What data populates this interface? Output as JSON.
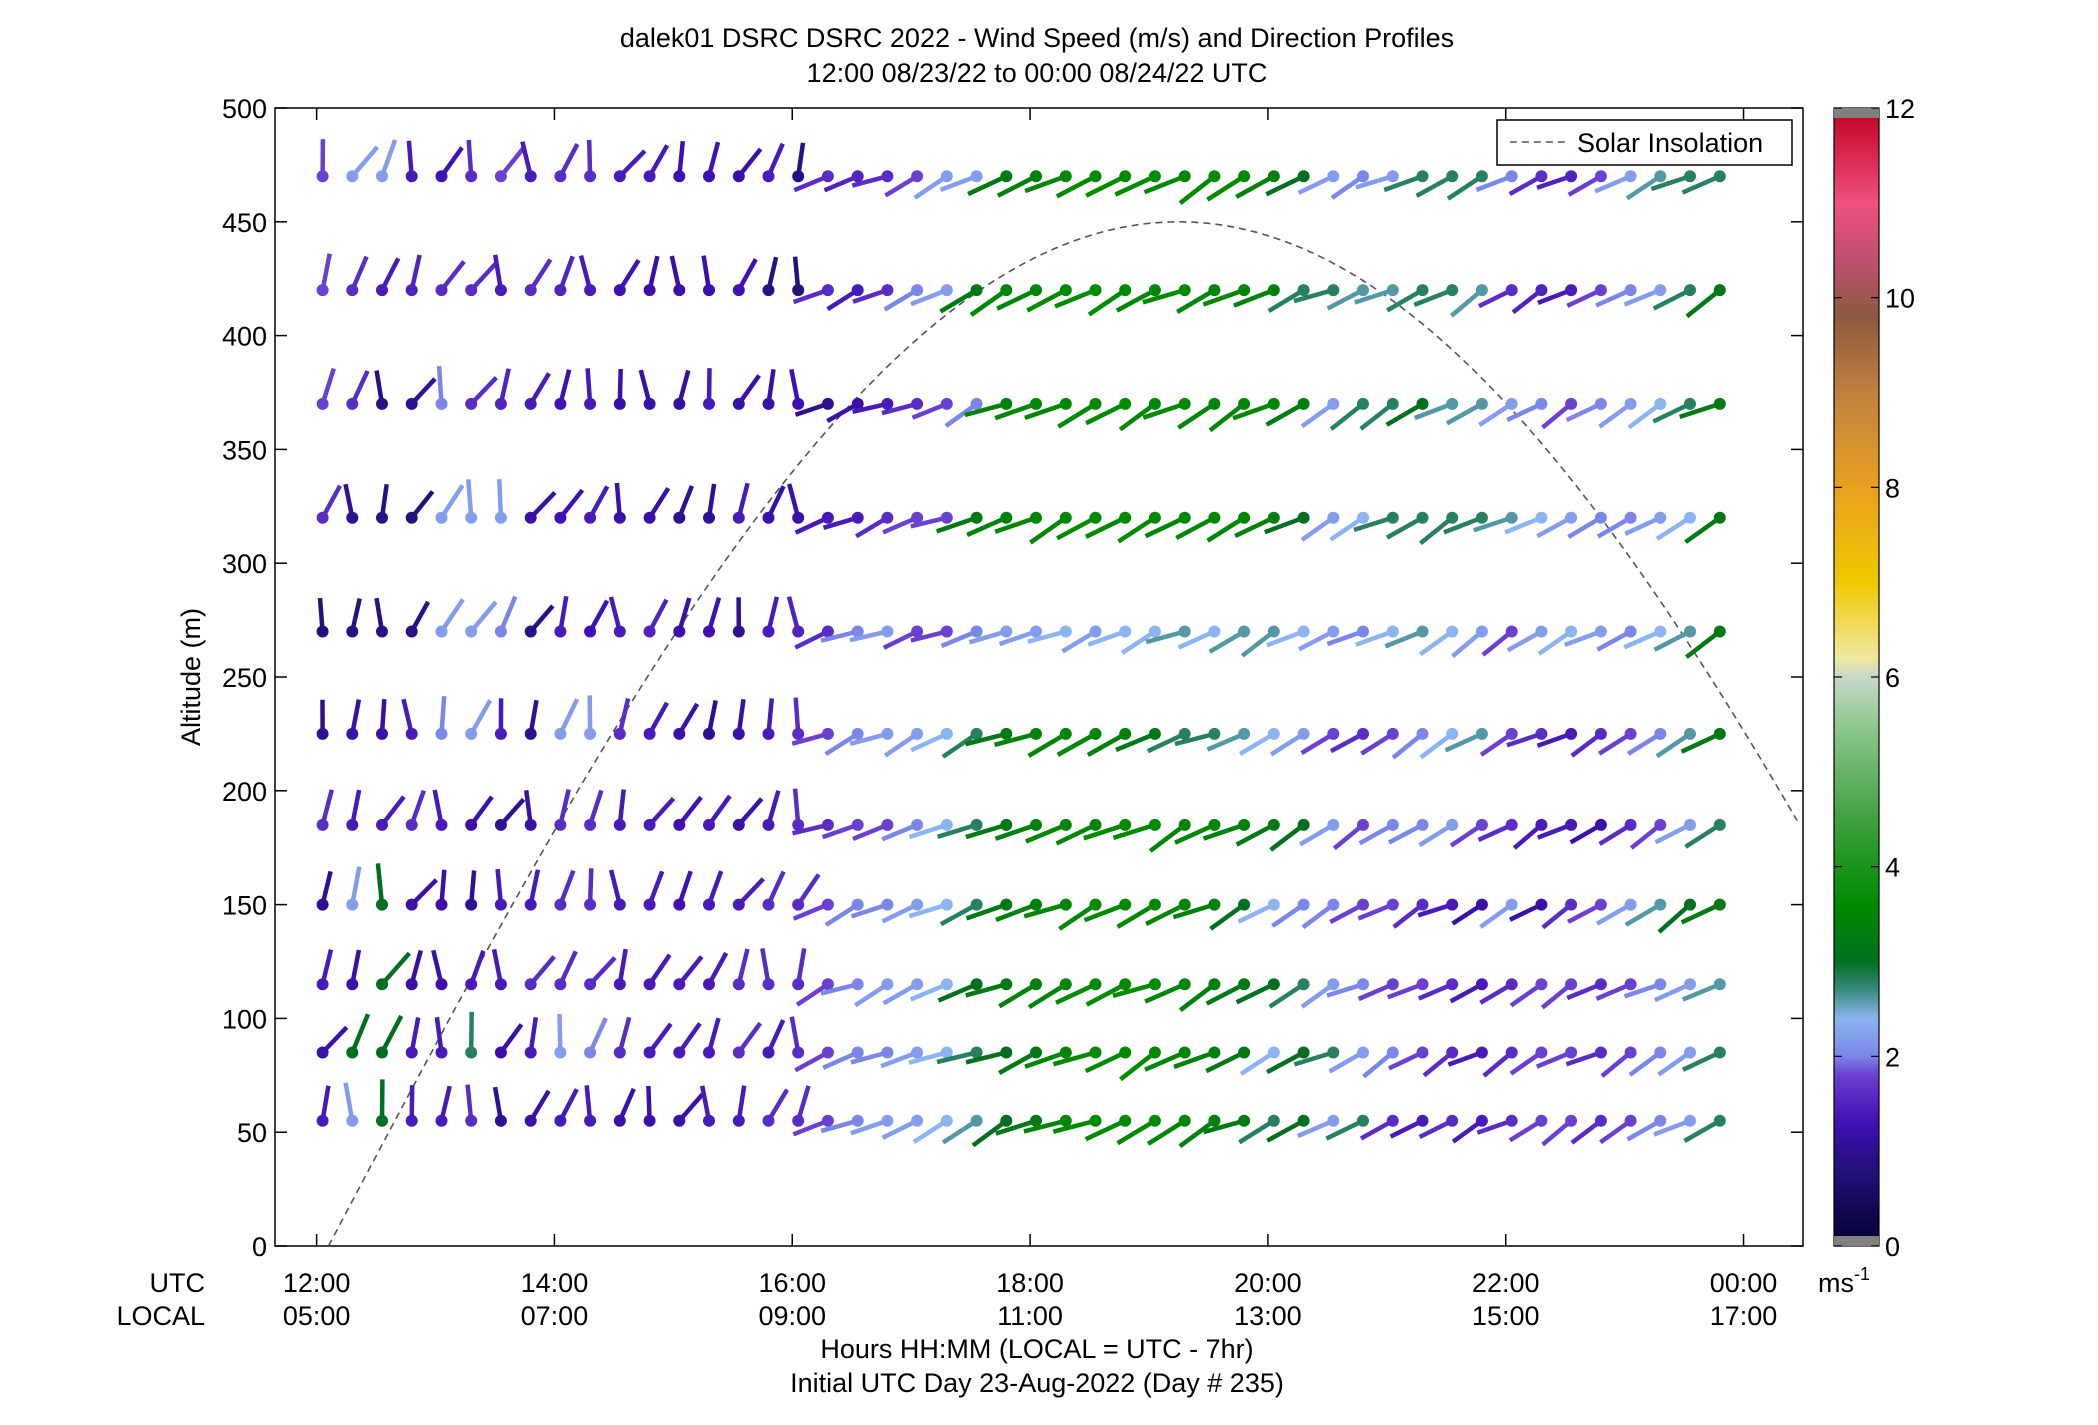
{
  "chart_data": {
    "type": "wind_barb_profile",
    "title": "dalek01 DSRC DSRC 2022 - Wind Speed (m/s) and Direction Profiles",
    "subtitle": "12:00 08/23/22 to 00:00 08/24/22  UTC",
    "ylabel": "Altitude (m)",
    "xlabel": "Hours HH:MM  (LOCAL = UTC - 7hr)",
    "xlabel2": "Initial UTC Day 23-Aug-2022 (Day # 235)",
    "x_row_label_utc": "UTC",
    "x_row_label_local": "LOCAL",
    "ylim": [
      0,
      500
    ],
    "y_ticks": [
      "0",
      "50",
      "100",
      "150",
      "200",
      "250",
      "300",
      "350",
      "400",
      "450",
      "500"
    ],
    "xlim_hours": [
      11.65,
      24.5
    ],
    "x_ticks_hours": [
      12,
      14,
      16,
      18,
      20,
      22,
      24
    ],
    "x_tick_labels_utc": [
      "12:00",
      "14:00",
      "16:00",
      "18:00",
      "20:00",
      "22:00",
      "00:00"
    ],
    "x_tick_labels_local": [
      "05:00",
      "07:00",
      "09:00",
      "11:00",
      "13:00",
      "15:00",
      "17:00"
    ],
    "legend": {
      "label": "Solar Insolation",
      "placement": "top-right"
    },
    "solar_curve": {
      "start_hour": 12.1,
      "end_hour": 24.5,
      "peak_hour": 19.25,
      "peak_altitude": 450,
      "color": "#555555"
    },
    "colorbar": {
      "range": [
        0,
        12
      ],
      "tick_labels": [
        "0",
        "2",
        "4",
        "6",
        "8",
        "10",
        "12"
      ],
      "units": "ms",
      "units_exp": "-1",
      "stops": [
        {
          "v": 0.0,
          "c": "#000033"
        },
        {
          "v": 0.8,
          "c": "#24107a"
        },
        {
          "v": 1.3,
          "c": "#3f10b5"
        },
        {
          "v": 1.8,
          "c": "#6a40d0"
        },
        {
          "v": 2.0,
          "c": "#7a86e8"
        },
        {
          "v": 2.4,
          "c": "#8cb4f0"
        },
        {
          "v": 2.7,
          "c": "#3a8a80"
        },
        {
          "v": 3.0,
          "c": "#007020"
        },
        {
          "v": 3.6,
          "c": "#008a00"
        },
        {
          "v": 4.5,
          "c": "#40a040"
        },
        {
          "v": 5.5,
          "c": "#90c890"
        },
        {
          "v": 6.0,
          "c": "#c8d8c8"
        },
        {
          "v": 6.2,
          "c": "#f0e8a0"
        },
        {
          "v": 7.0,
          "c": "#f0c800"
        },
        {
          "v": 8.0,
          "c": "#e8a020"
        },
        {
          "v": 9.0,
          "c": "#c08040"
        },
        {
          "v": 9.8,
          "c": "#8c5a40"
        },
        {
          "v": 10.4,
          "c": "#c05070"
        },
        {
          "v": 11.0,
          "c": "#f05080"
        },
        {
          "v": 12.0,
          "c": "#c00020"
        }
      ]
    },
    "barbs": {
      "time_start_hour": 12.05,
      "time_step_hours": 0.25,
      "count_per_row": 48,
      "rows": [
        {
          "altitude": 470,
          "speed_profile": [
            1.8,
            2.2,
            2.2,
            1.4,
            1.3,
            1.6,
            1.8,
            1.4,
            1.6,
            1.6,
            1.4,
            1.4,
            1.3,
            1.3,
            1.2,
            1.4,
            0.9,
            1.6,
            1.5,
            1.6,
            1.8,
            2.2,
            2.2,
            3.2,
            3.4,
            3.5,
            3.6,
            3.6,
            3.6,
            3.5,
            3.6,
            3.6,
            3.4,
            3.0,
            2.2,
            2.0,
            2.2,
            2.8,
            2.8,
            2.8,
            2.0,
            1.6,
            1.5,
            1.8,
            2.2,
            2.6,
            2.8,
            2.8
          ]
        },
        {
          "altitude": 420,
          "speed_profile": [
            1.8,
            1.6,
            1.4,
            1.5,
            1.6,
            1.6,
            1.4,
            1.6,
            1.5,
            1.4,
            1.3,
            1.2,
            1.2,
            1.2,
            1.3,
            0.9,
            0.8,
            1.6,
            1.4,
            1.6,
            2.0,
            2.2,
            3.2,
            3.5,
            3.5,
            3.6,
            3.6,
            3.6,
            3.5,
            3.6,
            3.5,
            3.5,
            3.4,
            2.8,
            2.8,
            2.6,
            2.6,
            2.8,
            2.8,
            2.6,
            1.6,
            1.5,
            1.4,
            1.8,
            2.0,
            2.2,
            2.8,
            3.2
          ]
        },
        {
          "altitude": 370,
          "speed_profile": [
            1.8,
            1.6,
            0.9,
            1.0,
            2.0,
            1.6,
            1.5,
            1.4,
            1.3,
            1.4,
            1.2,
            1.2,
            1.1,
            1.4,
            1.2,
            1.2,
            1.3,
            1.0,
            1.2,
            1.4,
            1.6,
            1.8,
            2.0,
            3.4,
            3.5,
            3.5,
            3.6,
            3.6,
            3.5,
            3.6,
            3.5,
            3.5,
            3.5,
            3.3,
            2.2,
            2.8,
            2.8,
            3.0,
            2.6,
            2.6,
            2.2,
            2.0,
            1.8,
            2.0,
            2.2,
            2.4,
            2.8,
            3.2
          ]
        },
        {
          "altitude": 320,
          "speed_profile": [
            1.6,
            1.0,
            0.9,
            0.8,
            2.2,
            2.2,
            2.2,
            1.2,
            1.3,
            1.4,
            1.2,
            1.2,
            1.0,
            1.0,
            1.4,
            1.2,
            1.2,
            1.4,
            1.4,
            1.6,
            1.8,
            1.8,
            3.2,
            3.4,
            3.5,
            3.5,
            3.6,
            3.6,
            3.6,
            3.5,
            3.5,
            3.5,
            3.4,
            3.0,
            2.2,
            2.4,
            2.8,
            2.8,
            2.8,
            2.8,
            2.6,
            2.4,
            2.2,
            2.0,
            2.0,
            2.2,
            2.4,
            3.2
          ]
        },
        {
          "altitude": 270,
          "speed_profile": [
            0.8,
            0.9,
            0.9,
            0.9,
            2.2,
            2.2,
            2.0,
            0.9,
            1.4,
            1.3,
            1.4,
            1.5,
            1.2,
            1.3,
            1.0,
            1.4,
            1.5,
            1.6,
            2.0,
            2.2,
            1.8,
            1.8,
            2.0,
            2.2,
            2.2,
            2.4,
            2.2,
            2.4,
            2.4,
            2.6,
            2.4,
            2.6,
            2.6,
            2.4,
            2.2,
            2.0,
            2.4,
            2.6,
            2.4,
            2.2,
            1.8,
            2.2,
            2.4,
            2.2,
            2.0,
            2.4,
            2.6,
            3.2
          ]
        },
        {
          "altitude": 225,
          "speed_profile": [
            1.0,
            1.2,
            1.2,
            1.4,
            2.0,
            2.2,
            1.4,
            1.0,
            2.2,
            2.2,
            1.6,
            1.4,
            1.2,
            1.0,
            1.2,
            1.4,
            1.6,
            1.8,
            2.0,
            2.2,
            2.2,
            2.4,
            2.8,
            3.2,
            3.4,
            3.5,
            3.5,
            3.4,
            3.2,
            2.8,
            2.8,
            2.6,
            2.4,
            2.2,
            1.8,
            1.6,
            1.8,
            2.0,
            2.4,
            2.6,
            1.8,
            1.6,
            1.4,
            1.6,
            1.8,
            2.0,
            2.6,
            3.2
          ]
        },
        {
          "altitude": 185,
          "speed_profile": [
            1.6,
            1.4,
            1.4,
            1.6,
            1.4,
            1.2,
            1.0,
            1.2,
            1.6,
            1.6,
            1.4,
            1.4,
            1.3,
            1.4,
            1.2,
            1.4,
            1.6,
            1.6,
            1.8,
            1.8,
            2.0,
            2.4,
            2.8,
            3.2,
            3.4,
            3.5,
            3.5,
            3.6,
            3.6,
            3.5,
            3.5,
            3.4,
            3.2,
            3.0,
            2.2,
            1.8,
            2.0,
            2.0,
            2.2,
            1.8,
            1.6,
            1.4,
            1.4,
            1.2,
            1.6,
            1.8,
            2.2,
            2.8
          ]
        },
        {
          "altitude": 150,
          "speed_profile": [
            1.0,
            2.2,
            3.0,
            1.2,
            1.2,
            1.0,
            1.4,
            1.4,
            1.6,
            1.6,
            1.4,
            1.4,
            1.3,
            1.4,
            1.4,
            1.6,
            1.6,
            1.8,
            2.0,
            2.0,
            2.2,
            2.4,
            2.8,
            3.2,
            3.4,
            3.5,
            3.6,
            3.6,
            3.6,
            3.5,
            3.4,
            3.0,
            2.4,
            2.0,
            2.0,
            1.8,
            1.8,
            1.6,
            1.4,
            1.2,
            2.2,
            1.2,
            1.6,
            1.8,
            2.2,
            2.6,
            3.0,
            3.2
          ]
        },
        {
          "altitude": 115,
          "speed_profile": [
            1.4,
            1.2,
            3.0,
            1.2,
            1.2,
            1.4,
            1.4,
            1.6,
            1.6,
            1.6,
            1.4,
            1.4,
            1.4,
            1.4,
            1.6,
            1.6,
            1.6,
            1.8,
            2.0,
            2.2,
            2.2,
            2.4,
            3.0,
            3.2,
            3.4,
            3.5,
            3.6,
            3.6,
            3.6,
            3.5,
            3.4,
            3.2,
            3.0,
            2.8,
            2.2,
            2.0,
            1.8,
            1.8,
            1.6,
            1.4,
            1.6,
            1.8,
            1.8,
            1.6,
            1.8,
            2.0,
            2.2,
            2.6
          ]
        },
        {
          "altitude": 85,
          "speed_profile": [
            1.2,
            3.0,
            3.0,
            1.4,
            1.4,
            2.8,
            1.2,
            1.4,
            2.2,
            2.0,
            1.6,
            1.4,
            1.4,
            1.4,
            1.6,
            1.4,
            1.6,
            1.8,
            2.0,
            2.0,
            2.2,
            2.4,
            2.8,
            3.0,
            3.2,
            3.5,
            3.6,
            3.6,
            3.6,
            3.5,
            3.4,
            3.2,
            2.4,
            3.0,
            2.8,
            2.2,
            2.0,
            1.8,
            1.6,
            1.4,
            1.6,
            1.8,
            1.8,
            1.6,
            1.8,
            2.0,
            2.2,
            2.8
          ]
        },
        {
          "altitude": 55,
          "speed_profile": [
            1.4,
            2.2,
            3.0,
            1.4,
            1.4,
            1.6,
            1.0,
            1.2,
            1.4,
            1.4,
            1.2,
            1.2,
            1.2,
            1.4,
            1.4,
            1.6,
            1.6,
            1.8,
            2.0,
            2.2,
            2.2,
            2.4,
            2.6,
            3.0,
            3.2,
            3.5,
            3.6,
            3.6,
            3.6,
            3.5,
            3.4,
            3.2,
            2.8,
            3.0,
            2.2,
            2.8,
            1.6,
            1.4,
            1.6,
            1.4,
            1.6,
            1.8,
            1.8,
            1.6,
            1.8,
            2.0,
            2.2,
            2.8
          ]
        }
      ]
    }
  }
}
